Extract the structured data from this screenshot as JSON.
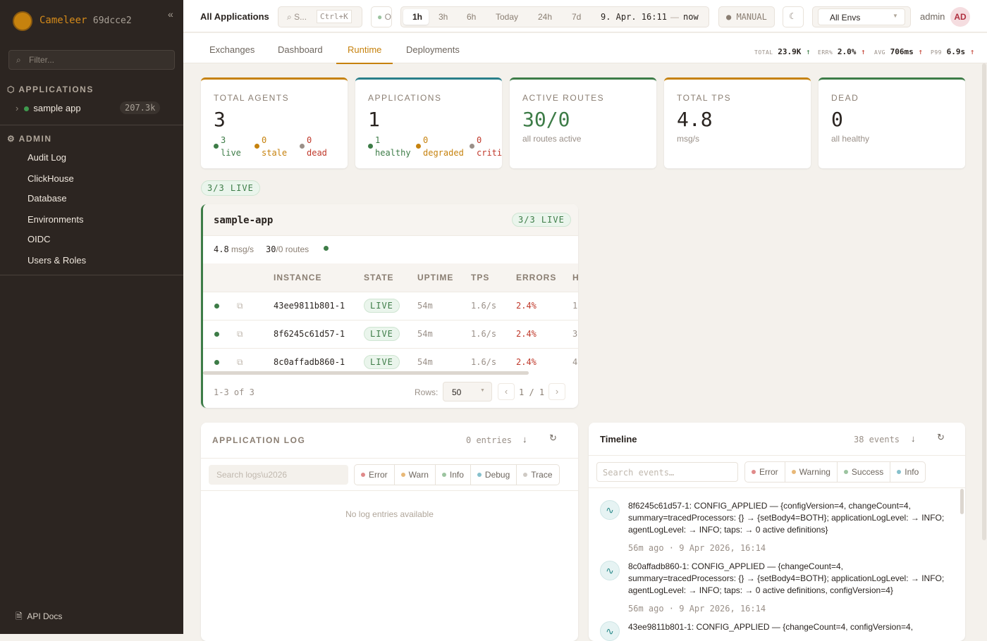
{
  "sidebar": {
    "brand": "Cameleer",
    "version": "69dcce2",
    "collapse": "«",
    "filter_placeholder": "Filter...",
    "applications_label": "APPLICATIONS",
    "apps": [
      {
        "name": "sample app",
        "count": "207.3k"
      }
    ],
    "admin_label": "ADMIN",
    "admin_items": [
      "Audit Log",
      "ClickHouse",
      "Database",
      "Environments",
      "OIDC",
      "Users & Roles"
    ],
    "api_docs": "API Docs"
  },
  "topbar": {
    "title": "All Applications",
    "search": "S...",
    "shortcut": "Ctrl+K",
    "status": "O",
    "ranges": [
      "1h",
      "3h",
      "6h",
      "Today",
      "24h",
      "7d"
    ],
    "active_range": "1h",
    "range_from": "9. Apr. 16:11",
    "range_sep": "—",
    "range_to": "now",
    "refresh": "MANUAL",
    "env": "All Envs",
    "user": "admin",
    "avatar": "AD"
  },
  "tabs": [
    "Exchanges",
    "Dashboard",
    "Runtime",
    "Deployments"
  ],
  "active_tab": "Runtime",
  "kpis": [
    {
      "label": "TOTAL",
      "value": "23.9K",
      "trend": "↑",
      "color": "#3d7c47"
    },
    {
      "label": "ERR%",
      "value": "2.0%",
      "trend": "↑",
      "color": "#c0392b"
    },
    {
      "label": "AVG",
      "value": "706ms",
      "trend": "↑",
      "color": "#c0392b"
    },
    {
      "label": "P99",
      "value": "6.9s",
      "trend": "↑",
      "color": "#c0392b"
    }
  ],
  "cards": [
    {
      "label": "TOTAL AGENTS",
      "value": "3",
      "breakdown": [
        {
          "n": "3",
          "t": "live"
        },
        {
          "n": "0",
          "t": "stale"
        },
        {
          "n": "0",
          "t": "dead"
        }
      ]
    },
    {
      "label": "APPLICATIONS",
      "value": "1",
      "breakdown": [
        {
          "n": "1",
          "t": "healthy"
        },
        {
          "n": "0",
          "t": "degraded"
        },
        {
          "n": "0",
          "t": "criti"
        }
      ]
    },
    {
      "label": "ACTIVE ROUTES",
      "value": "30/0",
      "sub": "all routes active"
    },
    {
      "label": "TOTAL TPS",
      "value": "4.8",
      "sub": "msg/s"
    },
    {
      "label": "DEAD",
      "value": "0",
      "sub": "all healthy"
    }
  ],
  "live_summary": "3/3 LIVE",
  "app": {
    "name": "sample-app",
    "badge": "3/3 LIVE",
    "tps": "4.8",
    "tps_unit": "msg/s",
    "routes": "30",
    "routes_rest": "/0 routes",
    "columns": [
      "INSTANCE",
      "STATE",
      "UPTIME",
      "TPS",
      "ERRORS",
      "H"
    ],
    "rows": [
      {
        "instance": "43ee9811b801-1",
        "state": "LIVE",
        "uptime": "54m",
        "tps": "1.6/s",
        "errors": "2.4%",
        "h": "1"
      },
      {
        "instance": "8f6245c61d57-1",
        "state": "LIVE",
        "uptime": "54m",
        "tps": "1.6/s",
        "errors": "2.4%",
        "h": "3"
      },
      {
        "instance": "8c0affadb860-1",
        "state": "LIVE",
        "uptime": "54m",
        "tps": "1.6/s",
        "errors": "2.4%",
        "h": "4"
      }
    ],
    "range": "1-3 of 3",
    "rows_label": "Rows:",
    "rows_value": "50",
    "page": "1 / 1",
    "prev": "‹",
    "next": "›"
  },
  "log": {
    "title": "APPLICATION LOG",
    "count": "0 entries",
    "search_placeholder": "Search logs\\u2026",
    "levels": [
      {
        "name": "Error",
        "color": "#e08a8a"
      },
      {
        "name": "Warn",
        "color": "#e8b878"
      },
      {
        "name": "Info",
        "color": "#9cc4a0"
      },
      {
        "name": "Debug",
        "color": "#86c0cc"
      },
      {
        "name": "Trace",
        "color": "#cfcac4"
      }
    ],
    "empty": "No log entries available"
  },
  "timeline": {
    "title": "Timeline",
    "count": "38 events",
    "search_placeholder": "Search events…",
    "levels": [
      {
        "name": "Error",
        "color": "#e08a8a"
      },
      {
        "name": "Warning",
        "color": "#e8b878"
      },
      {
        "name": "Success",
        "color": "#9cc4a0"
      },
      {
        "name": "Info",
        "color": "#86c0cc"
      }
    ],
    "events": [
      {
        "text": "8f6245c61d57-1: CONFIG_APPLIED — {configVersion=4, changeCount=4, summary=tracedProcessors: {} → {setBody4=BOTH}; applicationLogLevel: → INFO; agentLogLevel: → INFO; taps: → 0 active definitions}",
        "time": "56m ago · 9 Apr 2026, 16:14"
      },
      {
        "text": "8c0affadb860-1: CONFIG_APPLIED — {changeCount=4, summary=tracedProcessors: {} → {setBody4=BOTH}; applicationLogLevel: → INFO; agentLogLevel: → INFO; taps: → 0 active definitions, configVersion=4}",
        "time": "56m ago · 9 Apr 2026, 16:14"
      },
      {
        "text": "43ee9811b801-1: CONFIG_APPLIED — {changeCount=4, configVersion=4,",
        "time": ""
      }
    ]
  },
  "colors": {
    "accent": "#c6820e",
    "live": "#3d7c47",
    "error": "#c0392b",
    "teal": "#2a7f8a"
  }
}
